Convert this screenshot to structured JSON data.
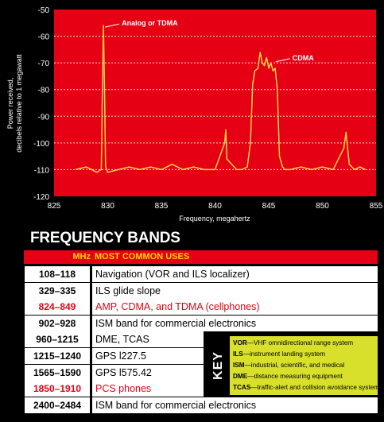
{
  "chart_data": {
    "type": "line",
    "ylabel_lines": [
      "Power received,",
      "decibels relative to 1 megawatt"
    ],
    "xlabel": "Frequency, megahertz",
    "xlim": [
      825,
      855
    ],
    "ylim": [
      -120,
      -50
    ],
    "x_ticks": [
      "825",
      "830",
      "835",
      "840",
      "845",
      "850",
      "855"
    ],
    "y_ticks": [
      "-50",
      "-60",
      "-70",
      "-80",
      "-90",
      "-100",
      "-110",
      "-120"
    ],
    "grid": "dashed, y only",
    "background": "#e60014",
    "line_color": "#ffd34d",
    "annotations": [
      {
        "text": "Analog or TDMA",
        "x": 829.6,
        "y": -56
      },
      {
        "text": "CDMA",
        "x": 845.5,
        "y": -69
      }
    ],
    "series": [
      {
        "x": [
          827.0,
          828.0,
          829.0,
          829.4,
          829.5,
          829.6,
          829.7,
          829.8,
          830.0,
          831.0,
          832.0,
          833.0,
          834.0,
          835.0,
          836.0,
          837.0,
          838.0,
          839.0,
          840.0,
          840.9,
          841.0,
          841.1,
          842.0,
          842.5,
          843.0,
          843.3,
          843.5,
          843.7,
          844.0,
          844.2,
          844.4,
          844.6,
          844.8,
          845.0,
          845.2,
          845.4,
          845.6,
          845.8,
          846.0,
          846.3,
          846.5,
          847.0,
          848.0,
          849.0,
          850.0,
          851.0,
          852.0,
          852.2,
          852.5,
          853.0,
          853.5,
          854.0
        ],
        "y": [
          -110,
          -109,
          -111,
          -110,
          -80,
          -56,
          -80,
          -109,
          -111,
          -110,
          -109,
          -110,
          -109,
          -110,
          -108,
          -110,
          -109,
          -110,
          -110,
          -100,
          -95,
          -106,
          -110,
          -110,
          -109,
          -100,
          -78,
          -73,
          -72,
          -66,
          -70,
          -71,
          -68,
          -72,
          -70,
          -73,
          -72,
          -80,
          -105,
          -109,
          -110,
          -110,
          -109,
          -110,
          -109,
          -110,
          -102,
          -96,
          -108,
          -110,
          -109,
          -110
        ]
      }
    ]
  },
  "bands": {
    "title": "FREQUENCY BANDS",
    "header": {
      "mhz": "MHz",
      "uses": "MOST COMMON USES"
    },
    "rows": [
      {
        "freq": "108–118",
        "use": "Navigation (VOR and ILS localizer)",
        "highlight": false
      },
      {
        "freq": "329–335",
        "use": "ILS glide slope",
        "highlight": false
      },
      {
        "freq": "824–849",
        "use": "AMP, CDMA, and TDMA (cellphones)",
        "highlight": true
      },
      {
        "freq": "902–928",
        "use": "ISM band for commercial electronics",
        "highlight": false
      },
      {
        "freq": "960–1215",
        "use": "DME, TCAS",
        "highlight": false
      },
      {
        "freq": "1215–1240",
        "use": "GPS l227.5",
        "highlight": false
      },
      {
        "freq": "1565–1590",
        "use": "GPS l575.42",
        "highlight": false
      },
      {
        "freq": "1850–1910",
        "use": "PCS phones",
        "highlight": true
      },
      {
        "freq": "2400–2484",
        "use": "ISM band for commercial electronics",
        "highlight": false
      }
    ]
  },
  "key": {
    "label": "KEY",
    "items": [
      {
        "abbr": "VOR",
        "text": "—VHF omnidirectional range system"
      },
      {
        "abbr": "ILS",
        "text": "—instrument landing system"
      },
      {
        "abbr": "ISM",
        "text": "—industrial, scientific, and medical"
      },
      {
        "abbr": "DME",
        "text": "—distance measuring equipment"
      },
      {
        "abbr": "TCAS",
        "text": "—traffic-alert and collision avoidance system"
      }
    ]
  }
}
